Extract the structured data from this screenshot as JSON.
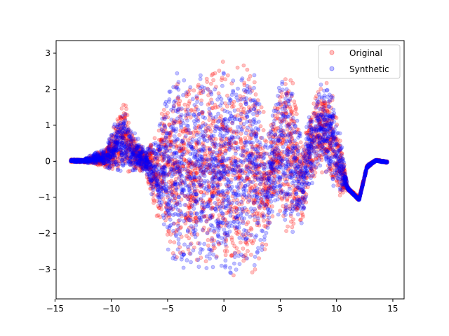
{
  "chart_data": {
    "type": "scatter",
    "title": "",
    "xlabel": "",
    "ylabel": "",
    "xlim": [
      -14.9,
      16.0
    ],
    "ylim": [
      -3.82,
      3.35
    ],
    "xticks": [
      -15,
      -10,
      -5,
      0,
      5,
      10,
      15
    ],
    "yticks": [
      -3,
      -2,
      -1,
      0,
      1,
      2,
      3
    ],
    "grid": false,
    "legend_position": "top-right",
    "marker": "o",
    "opacity": 0.25,
    "series": [
      {
        "name": "Original",
        "color": "#ff0000",
        "envelope": [
          [
            -13.6,
            0.06,
            -0.02
          ],
          [
            -12.5,
            0.05,
            -0.03
          ],
          [
            -11.5,
            0.2,
            -0.1
          ],
          [
            -10.5,
            0.4,
            -0.2
          ],
          [
            -9.5,
            1.2,
            -0.35
          ],
          [
            -8.8,
            1.8,
            -0.3
          ],
          [
            -8.0,
            0.8,
            -0.4
          ],
          [
            -7.0,
            0.3,
            -0.3
          ],
          [
            -6.0,
            0.8,
            -1.6
          ],
          [
            -5.0,
            2.0,
            -2.5
          ],
          [
            -4.0,
            2.7,
            -3.2
          ],
          [
            -3.0,
            2.5,
            -3.0
          ],
          [
            -2.0,
            2.8,
            -3.1
          ],
          [
            -1.0,
            2.9,
            -3.2
          ],
          [
            0.0,
            2.9,
            -3.2
          ],
          [
            1.0,
            3.05,
            -3.4
          ],
          [
            2.0,
            2.9,
            -3.2
          ],
          [
            3.0,
            2.6,
            -3.1
          ],
          [
            3.8,
            1.0,
            -2.5
          ],
          [
            4.5,
            1.5,
            -1.4
          ],
          [
            5.0,
            2.7,
            -1.8
          ],
          [
            6.0,
            2.6,
            -2.2
          ],
          [
            7.0,
            0.5,
            -1.8
          ],
          [
            7.6,
            1.6,
            -0.9
          ],
          [
            8.5,
            2.3,
            -0.3
          ],
          [
            9.5,
            2.2,
            -0.8
          ],
          [
            10.3,
            0.8,
            -1.0
          ],
          [
            11.0,
            -0.7,
            -0.8
          ],
          [
            12.0,
            -1.0,
            -1.1
          ],
          [
            12.7,
            -0.1,
            -0.2
          ],
          [
            13.5,
            0.05,
            0.0
          ],
          [
            14.5,
            0.0,
            -0.05
          ]
        ]
      },
      {
        "name": "Synthetic",
        "color": "#0000ff",
        "envelope": [
          [
            -13.6,
            0.06,
            -0.02
          ],
          [
            -12.5,
            0.05,
            -0.03
          ],
          [
            -11.5,
            0.25,
            -0.1
          ],
          [
            -10.5,
            0.4,
            -0.25
          ],
          [
            -9.5,
            1.3,
            -0.4
          ],
          [
            -8.8,
            1.5,
            -0.3
          ],
          [
            -8.0,
            0.9,
            -0.4
          ],
          [
            -7.0,
            0.3,
            -0.3
          ],
          [
            -6.0,
            0.9,
            -1.5
          ],
          [
            -5.0,
            2.1,
            -2.6
          ],
          [
            -4.0,
            2.6,
            -3.2
          ],
          [
            -3.0,
            2.5,
            -3.1
          ],
          [
            -2.0,
            2.7,
            -3.1
          ],
          [
            -1.0,
            2.8,
            -3.2
          ],
          [
            0.0,
            2.8,
            -3.3
          ],
          [
            1.0,
            3.0,
            -3.45
          ],
          [
            2.0,
            2.9,
            -3.3
          ],
          [
            3.0,
            2.6,
            -3.0
          ],
          [
            3.8,
            1.0,
            -2.4
          ],
          [
            4.5,
            1.5,
            -1.4
          ],
          [
            5.0,
            2.8,
            -1.8
          ],
          [
            6.0,
            2.5,
            -2.1
          ],
          [
            7.0,
            0.5,
            -1.8
          ],
          [
            7.6,
            1.6,
            -0.9
          ],
          [
            8.5,
            2.3,
            -0.3
          ],
          [
            9.5,
            2.2,
            -0.8
          ],
          [
            10.3,
            0.8,
            -0.9
          ],
          [
            11.0,
            -0.7,
            -0.8
          ],
          [
            12.0,
            -1.05,
            -1.1
          ],
          [
            12.7,
            -0.1,
            -0.2
          ],
          [
            13.5,
            0.05,
            0.0
          ],
          [
            14.5,
            0.0,
            -0.05
          ]
        ]
      }
    ]
  }
}
